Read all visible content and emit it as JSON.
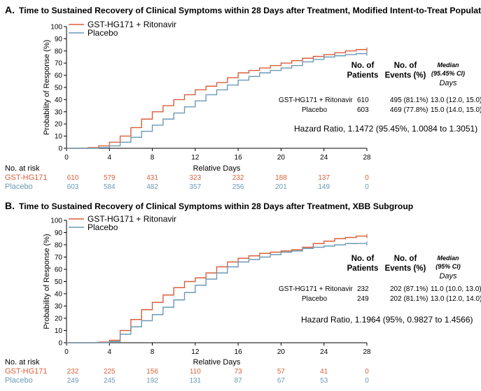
{
  "colors": {
    "treatment": "#d95f3b",
    "placebo": "#6a9ab5",
    "axis": "#000000"
  },
  "chart_data": [
    {
      "type": "line",
      "panel_label": "A.",
      "title": "Time to Sustained Recovery of Clinical Symptoms within 28 Days after Treatment, Modified Intent-to-Treat Population",
      "xlabel": "Relative Days",
      "ylabel": "Probability of Response (%)",
      "xlim": [
        0,
        28
      ],
      "ylim": [
        0,
        100
      ],
      "xticks": [
        "0",
        "4",
        "8",
        "12",
        "16",
        "20",
        "24",
        "28"
      ],
      "yticks": [
        "0",
        "10",
        "20",
        "30",
        "40",
        "50",
        "60",
        "70",
        "80",
        "90",
        "100"
      ],
      "series": [
        {
          "name": "GST-HG171 + Ritonavir",
          "x": [
            0,
            1,
            2,
            3,
            4,
            5,
            6,
            7,
            8,
            9,
            10,
            11,
            12,
            13,
            14,
            15,
            16,
            17,
            18,
            19,
            20,
            21,
            22,
            23,
            24,
            25,
            26,
            27,
            28
          ],
          "y": [
            0,
            0,
            0.5,
            2,
            5,
            10,
            17,
            24,
            30,
            35,
            40,
            44,
            48,
            51,
            54,
            58,
            62,
            64,
            66,
            68,
            70,
            72,
            74,
            75.5,
            77,
            78.5,
            80,
            81.1,
            81.1
          ]
        },
        {
          "name": "Placebo",
          "x": [
            0,
            1,
            2,
            3,
            4,
            5,
            6,
            7,
            8,
            9,
            10,
            11,
            12,
            13,
            14,
            15,
            16,
            17,
            18,
            19,
            20,
            21,
            22,
            23,
            24,
            25,
            26,
            27,
            28
          ],
          "y": [
            0,
            0,
            0,
            0.5,
            2,
            5,
            9,
            14,
            19,
            24,
            29,
            34,
            39,
            44,
            48,
            52,
            56,
            59,
            62,
            64,
            66,
            68,
            71,
            73,
            75,
            76,
            77,
            77.8,
            77.8
          ]
        }
      ],
      "table": {
        "header_patients": "No. of Patients",
        "header_events": "No. of Events (%)",
        "header_median": "Median (95.45% CI)",
        "header_days": "Days",
        "rows": [
          {
            "group": "GST-HG171 + Ritonavir",
            "patients": "610",
            "events": "495 (81.1%)",
            "median": "13.0 (12.0, 15.0)"
          },
          {
            "group": "Placebo",
            "patients": "603",
            "events": "469 (77.8%)",
            "median": "15.0 (14.0, 15.0)"
          }
        ]
      },
      "hazard_ratio": "Hazard Ratio, 1.1472 (95.45%, 1.0084 to 1.3051)",
      "at_risk": {
        "label": "No. at risk",
        "rows": [
          {
            "name": "GST-HG171",
            "values": [
              "610",
              "579",
              "431",
              "323",
              "232",
              "188",
              "137",
              "0"
            ]
          },
          {
            "name": "Placebo",
            "values": [
              "603",
              "584",
              "482",
              "357",
              "256",
              "201",
              "149",
              "0"
            ]
          }
        ]
      }
    },
    {
      "type": "line",
      "panel_label": "B.",
      "title": "Time to Sustained Recovery of Clinical Symptoms within 28 Days after Treatment, XBB Subgroup",
      "xlabel": "Relative Days",
      "ylabel": "Probability of Response (%)",
      "xlim": [
        0,
        28
      ],
      "ylim": [
        0,
        100
      ],
      "xticks": [
        "0",
        "4",
        "8",
        "12",
        "16",
        "20",
        "24",
        "28"
      ],
      "yticks": [
        "0",
        "10",
        "20",
        "30",
        "40",
        "50",
        "60",
        "70",
        "80",
        "90",
        "100"
      ],
      "series": [
        {
          "name": "GST-HG171 + Ritonavir",
          "x": [
            0,
            1,
            2,
            3,
            4,
            5,
            6,
            7,
            8,
            9,
            10,
            11,
            12,
            13,
            14,
            15,
            16,
            17,
            18,
            19,
            20,
            21,
            22,
            23,
            24,
            25,
            26,
            27,
            28
          ],
          "y": [
            0,
            0,
            0,
            0.5,
            2,
            10,
            19,
            27,
            33,
            39,
            45,
            50,
            53,
            57,
            62,
            66,
            69,
            71,
            73,
            74,
            75,
            76,
            78,
            81,
            83,
            85,
            86,
            87.1,
            87.1
          ]
        },
        {
          "name": "Placebo",
          "x": [
            0,
            1,
            2,
            3,
            4,
            5,
            6,
            7,
            8,
            9,
            10,
            11,
            12,
            13,
            14,
            15,
            16,
            17,
            18,
            19,
            20,
            21,
            22,
            23,
            24,
            25,
            26,
            27,
            28
          ],
          "y": [
            0,
            0,
            0,
            0,
            1,
            7,
            13,
            18,
            23,
            29,
            35,
            41,
            47,
            52,
            57,
            62,
            66,
            68,
            70,
            72,
            74,
            75,
            77,
            78,
            79,
            80,
            81,
            81.1,
            81.1
          ]
        }
      ],
      "table": {
        "header_patients": "No. of Patients",
        "header_events": "No. of Events (%)",
        "header_median": "Median (95% CI)",
        "header_days": "Days",
        "rows": [
          {
            "group": "GST-HG171 + Ritonavir",
            "patients": "232",
            "events": "202 (87.1%)",
            "median": "11.0 (10.0, 13.0)"
          },
          {
            "group": "Placebo",
            "patients": "249",
            "events": "202 (81.1%)",
            "median": "13.0 (12.0, 14.0)"
          }
        ]
      },
      "hazard_ratio": "Hazard Ratio, 1.1964 (95%, 0.9827 to 1.4566)",
      "at_risk": {
        "label": "No. at risk",
        "rows": [
          {
            "name": "GST-HG171",
            "values": [
              "232",
              "225",
              "156",
              "110",
              "73",
              "57",
              "41",
              "0"
            ]
          },
          {
            "name": "Placebo",
            "values": [
              "249",
              "245",
              "192",
              "131",
              "87",
              "67",
              "53",
              "0"
            ]
          }
        ]
      }
    }
  ]
}
